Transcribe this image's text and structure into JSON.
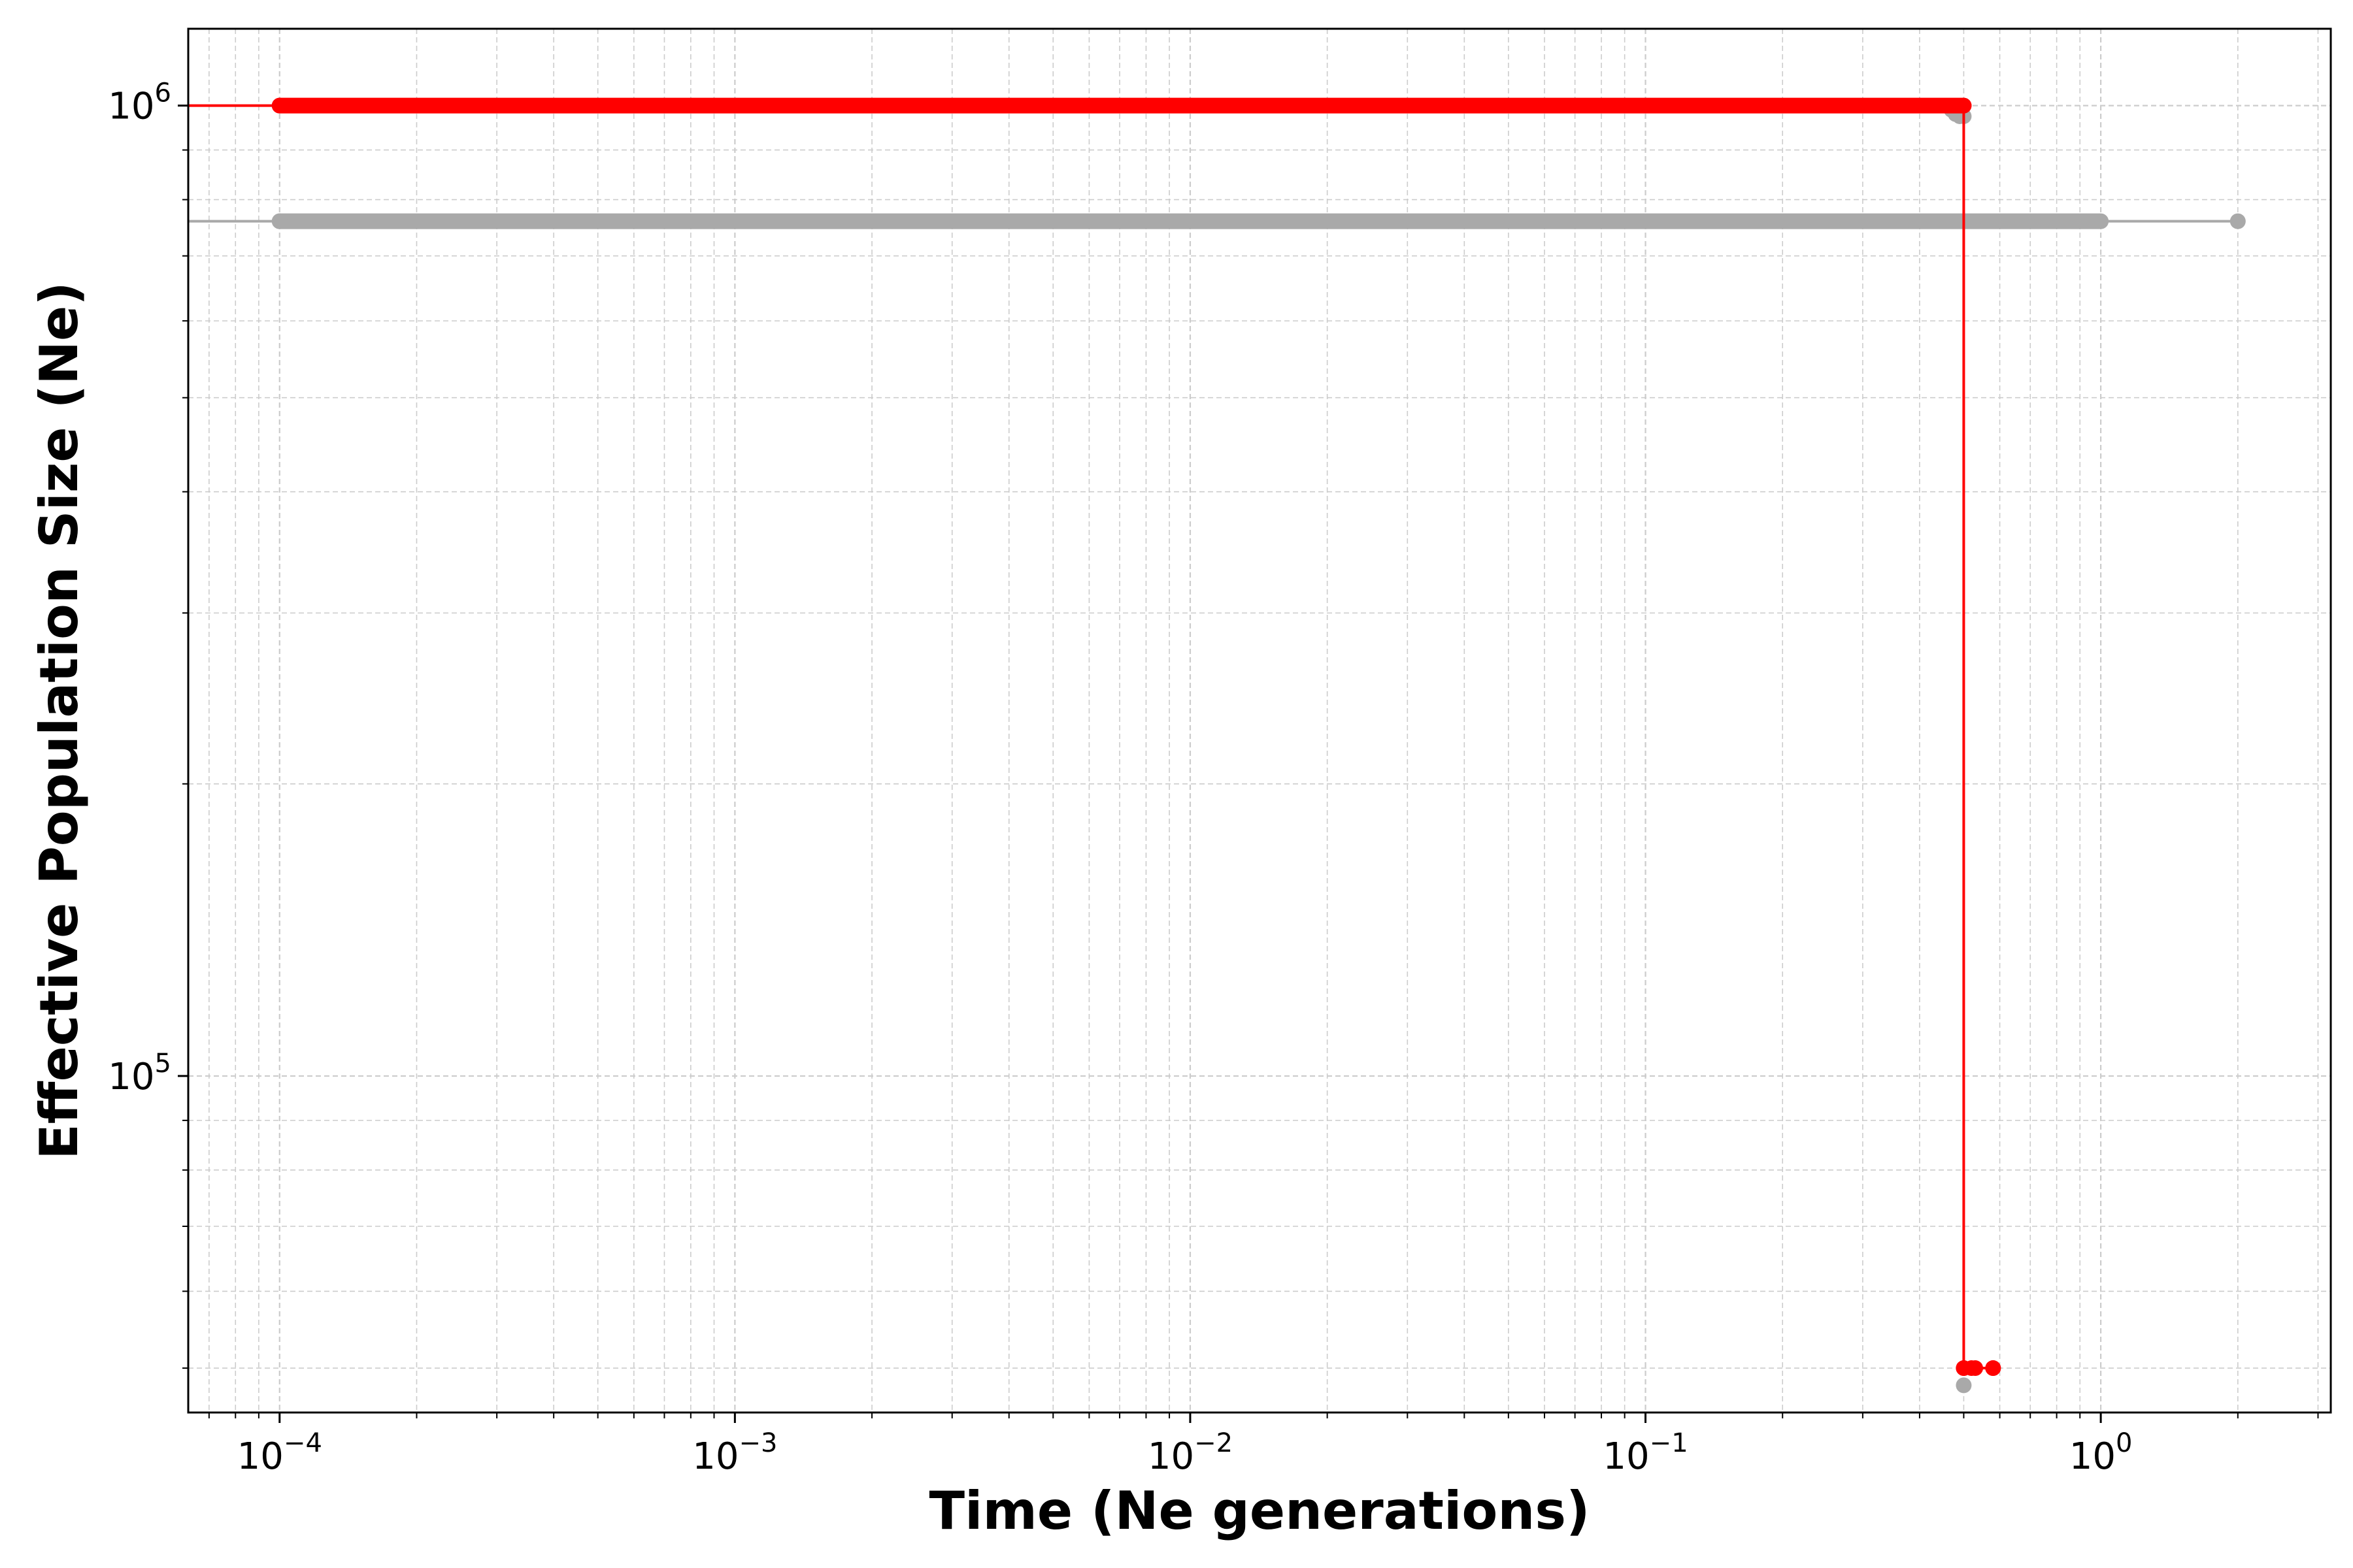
{
  "chart_data": {
    "type": "line",
    "xlabel": "Time (Ne generations)",
    "ylabel": "Effective Population Size (Ne)",
    "x_scale": "log",
    "y_scale": "log",
    "xlim": [
      6.3e-05,
      3.2
    ],
    "ylim": [
      45000,
      1200000
    ],
    "grid": true,
    "x_ticks": [
      {
        "value": 0.0001,
        "base": "10",
        "exp": "−4"
      },
      {
        "value": 0.001,
        "base": "10",
        "exp": "−3"
      },
      {
        "value": 0.01,
        "base": "10",
        "exp": "−2"
      },
      {
        "value": 0.1,
        "base": "10",
        "exp": "−1"
      },
      {
        "value": 1,
        "base": "10",
        "exp": "0"
      }
    ],
    "y_ticks": [
      {
        "value": 100000,
        "base": "10",
        "exp": "5"
      },
      {
        "value": 1000000,
        "base": "10",
        "exp": "6"
      }
    ],
    "series": [
      {
        "color": "#a9a9a9",
        "line_start_x": 6.3e-05,
        "dense_range": [
          0.0001,
          1.0
        ],
        "steps": [
          {
            "x": 0.0001,
            "y": 760000
          },
          {
            "x": 2.0,
            "y": 760000
          }
        ],
        "extra_points": [
          {
            "x": 0.47,
            "y": 990000
          },
          {
            "x": 0.48,
            "y": 980000
          },
          {
            "x": 0.49,
            "y": 975000
          },
          {
            "x": 0.5,
            "y": 975000
          },
          {
            "x": 0.5,
            "y": 48000
          }
        ]
      },
      {
        "color": "#ff0000",
        "line_start_x": 6.3e-05,
        "dense_range": [
          0.0001,
          0.5
        ],
        "steps": [
          {
            "x": 0.0001,
            "y": 1000000
          },
          {
            "x": 0.5,
            "y": 1000000
          },
          {
            "x": 0.5,
            "y": 50000
          },
          {
            "x": 0.58,
            "y": 50000
          }
        ],
        "extra_points": [
          {
            "x": 0.5,
            "y": 50000
          },
          {
            "x": 0.52,
            "y": 50000
          },
          {
            "x": 0.53,
            "y": 50000
          },
          {
            "x": 0.58,
            "y": 50000
          }
        ]
      }
    ]
  }
}
